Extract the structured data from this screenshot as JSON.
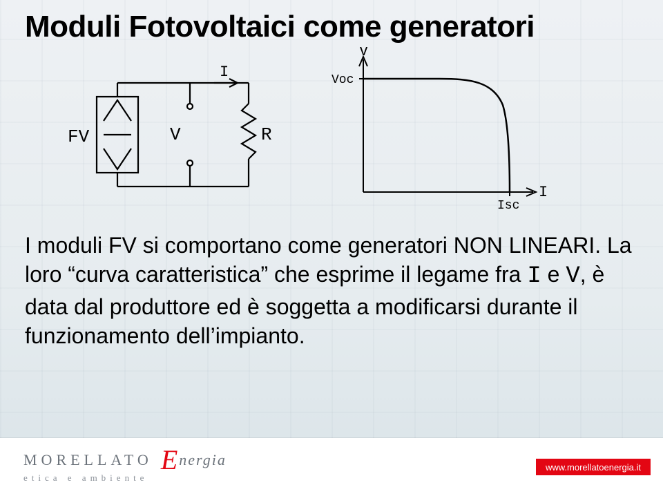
{
  "title": "Moduli Fotovoltaici come generatori",
  "circuit": {
    "labels": {
      "FV": "FV",
      "V": "V",
      "I": "I",
      "R": "R"
    },
    "stroke": "#000000",
    "label_fontsize": 26
  },
  "curve": {
    "type": "line",
    "axis_label_V": "V",
    "axis_label_I": "I",
    "y_top_label": "Voc",
    "x_right_label": "Isc",
    "stroke": "#000000",
    "stroke_width": 2.5,
    "axis_color": "#000000",
    "label_fontsize": 20,
    "points": [
      [
        0,
        158
      ],
      [
        90,
        158
      ],
      [
        130,
        157
      ],
      [
        155,
        153
      ],
      [
        172,
        145
      ],
      [
        185,
        130
      ],
      [
        195,
        108
      ],
      [
        201,
        80
      ],
      [
        205,
        48
      ],
      [
        207,
        18
      ],
      [
        207,
        0
      ]
    ]
  },
  "body": {
    "seg1": "I moduli FV si comportano come generatori NON LINEARI. La loro “curva caratteristica” che esprime il legame fra ",
    "seg_I": "I",
    "seg2": " e ",
    "seg_V": "V",
    "seg3": ", è data dal produttore ed è soggetta a modificarsi durante il funzionamento dell’impianto."
  },
  "brand": {
    "name": "MORELLATO",
    "e": "E",
    "sub": "nergia",
    "tagline": "etica e ambiente",
    "url": "www.morellatoenergia.it",
    "accent": "#e30613"
  }
}
